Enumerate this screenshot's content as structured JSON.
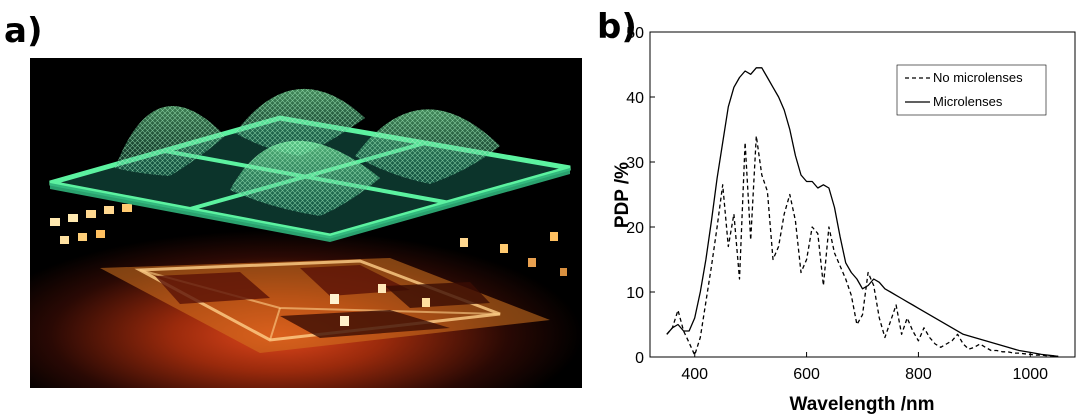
{
  "panel_a": {
    "label": "a)",
    "image": "3d-render-of-microlens-array-over-spad-pixels"
  },
  "panel_b": {
    "label": "b)"
  },
  "chart_data": {
    "type": "line",
    "title": "",
    "xlabel": "Wavelength /nm",
    "ylabel": "PDP /%",
    "xlim": [
      320,
      1080
    ],
    "ylim": [
      0,
      50
    ],
    "xticks": [
      400,
      600,
      800,
      1000
    ],
    "yticks": [
      0,
      10,
      20,
      30,
      40,
      50
    ],
    "grid": false,
    "legend_position": "top-right",
    "series": [
      {
        "name": "No microlenses",
        "style": "dashed",
        "color": "#000000",
        "x": [
          350,
          360,
          370,
          380,
          390,
          400,
          410,
          420,
          430,
          440,
          450,
          460,
          470,
          480,
          490,
          500,
          510,
          520,
          530,
          540,
          550,
          560,
          570,
          580,
          590,
          600,
          610,
          620,
          630,
          640,
          650,
          660,
          670,
          680,
          690,
          700,
          710,
          720,
          730,
          740,
          750,
          760,
          770,
          780,
          790,
          800,
          810,
          820,
          830,
          840,
          850,
          860,
          870,
          880,
          890,
          900,
          910,
          920,
          930,
          940,
          950,
          960,
          970,
          980,
          990,
          1000,
          1010,
          1020,
          1030,
          1040,
          1050
        ],
        "y": [
          3.5,
          4.5,
          7.2,
          4.0,
          2.2,
          0.3,
          3.0,
          8.5,
          14.0,
          20.0,
          26.5,
          17.0,
          22.0,
          12.0,
          33.0,
          18.0,
          34.0,
          28.0,
          25.5,
          15.0,
          17.0,
          22.0,
          25.0,
          21.0,
          13.0,
          15.0,
          20.0,
          19.0,
          11.0,
          20.0,
          16.0,
          14.0,
          12.0,
          9.5,
          5.0,
          6.5,
          13.0,
          11.0,
          6.0,
          3.0,
          5.5,
          8.0,
          3.5,
          6.0,
          4.0,
          2.5,
          4.5,
          3.0,
          2.0,
          1.5,
          2.0,
          2.5,
          3.5,
          2.0,
          1.2,
          1.5,
          2.0,
          1.5,
          1.0,
          1.0,
          0.8,
          0.8,
          0.6,
          0.6,
          0.5,
          0.4,
          0.3,
          0.3,
          0.2,
          0.2,
          0.1
        ]
      },
      {
        "name": "Microlenses",
        "style": "solid",
        "color": "#000000",
        "x": [
          350,
          360,
          370,
          380,
          390,
          400,
          410,
          420,
          430,
          440,
          450,
          460,
          470,
          480,
          490,
          500,
          510,
          520,
          530,
          540,
          550,
          560,
          570,
          580,
          590,
          600,
          610,
          620,
          630,
          640,
          650,
          660,
          670,
          680,
          690,
          700,
          710,
          720,
          730,
          740,
          750,
          760,
          770,
          780,
          790,
          800,
          820,
          840,
          860,
          880,
          900,
          920,
          940,
          960,
          980,
          1000,
          1020,
          1040,
          1050
        ],
        "y": [
          3.5,
          4.5,
          5.0,
          4.0,
          4.0,
          6.0,
          10.0,
          15.0,
          21.0,
          27.5,
          33.0,
          38.5,
          41.5,
          43.0,
          44.0,
          43.5,
          44.5,
          44.5,
          43.0,
          41.5,
          40.0,
          38.0,
          35.0,
          31.0,
          28.0,
          27.0,
          27.0,
          26.0,
          26.5,
          26.0,
          23.0,
          18.5,
          14.5,
          13.0,
          12.0,
          10.5,
          11.0,
          12.0,
          11.5,
          10.5,
          10.0,
          9.5,
          9.0,
          8.5,
          8.0,
          7.5,
          6.5,
          5.5,
          4.5,
          3.5,
          3.0,
          2.5,
          2.0,
          1.5,
          1.0,
          0.7,
          0.4,
          0.2,
          0.1
        ]
      }
    ]
  }
}
